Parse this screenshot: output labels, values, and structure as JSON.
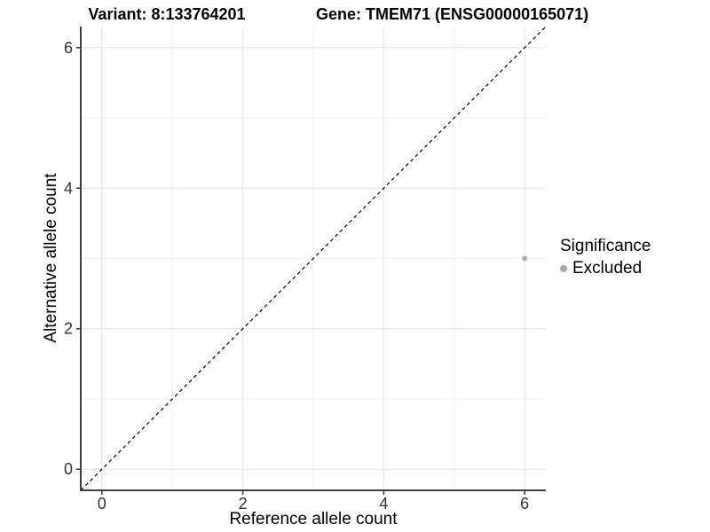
{
  "chart_data": {
    "type": "scatter",
    "title": "Variant: 8:133764201    Gene: TMEM71 (ENSG00000165071)",
    "title_left": "Variant: 8:133764201",
    "title_right": "Gene: TMEM71 (ENSG00000165071)",
    "xlabel": "Reference allele count",
    "ylabel": "Alternative allele count",
    "xlim": [
      -0.3,
      6.3
    ],
    "ylim": [
      -0.3,
      6.3
    ],
    "x_ticks": [
      0,
      2,
      4,
      6
    ],
    "y_ticks": [
      0,
      2,
      4,
      6
    ],
    "x_minor_ticks": [
      1,
      3,
      5
    ],
    "y_minor_ticks": [
      1,
      3,
      5
    ],
    "grid": true,
    "identity_line": {
      "slope": 1,
      "intercept": 0,
      "style": "dashed",
      "color": "#000000"
    },
    "points": [
      {
        "x": 6,
        "y": 3,
        "significance": "Excluded",
        "color": "#b0b0b0",
        "radius": 3
      }
    ],
    "legend": {
      "position": "right",
      "title": "Significance",
      "entries": [
        {
          "label": "Excluded",
          "color": "#a8a8a8"
        }
      ]
    },
    "colors": {
      "grid_major": "#e3e3e3",
      "grid_minor": "#f0f0f0",
      "axis": "#404040",
      "tick_label": "#333333",
      "background": "#ffffff"
    }
  }
}
